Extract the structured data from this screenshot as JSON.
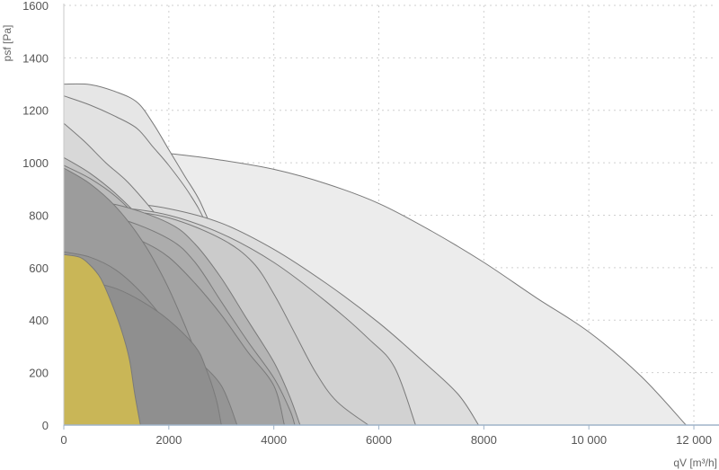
{
  "chart_data": {
    "type": "area",
    "xlabel": "qV [m³/h]",
    "ylabel": "psf [Pa]",
    "xlim": [
      0,
      12400
    ],
    "ylim": [
      0,
      1600
    ],
    "grid": true,
    "x_ticks": [
      {
        "value": 0,
        "label": "0"
      },
      {
        "value": 2000,
        "label": "2000"
      },
      {
        "value": 4000,
        "label": "4000"
      },
      {
        "value": 6000,
        "label": "6000"
      },
      {
        "value": 8000,
        "label": "8000"
      },
      {
        "value": 10000,
        "label": "10 000"
      },
      {
        "value": 12000,
        "label": "12 000"
      }
    ],
    "y_ticks": [
      {
        "value": 0,
        "label": "0"
      },
      {
        "value": 200,
        "label": "200"
      },
      {
        "value": 400,
        "label": "400"
      },
      {
        "value": 600,
        "label": "600"
      },
      {
        "value": 800,
        "label": "800"
      },
      {
        "value": 1000,
        "label": "1000"
      },
      {
        "value": 1200,
        "label": "1200"
      },
      {
        "value": 1400,
        "label": "1400"
      },
      {
        "value": 1600,
        "label": "1600"
      }
    ],
    "series": [
      {
        "fill": "#ececec",
        "points": [
          [
            0,
            1050
          ],
          [
            1000,
            1045
          ],
          [
            2000,
            1035
          ],
          [
            3000,
            1010
          ],
          [
            4000,
            975
          ],
          [
            5000,
            920
          ],
          [
            6000,
            845
          ],
          [
            7000,
            740
          ],
          [
            8000,
            620
          ],
          [
            9000,
            485
          ],
          [
            10000,
            355
          ],
          [
            11000,
            185
          ],
          [
            11850,
            0
          ]
        ]
      },
      {
        "fill": "#e6e6e6",
        "points": [
          [
            0,
            1300
          ],
          [
            500,
            1298
          ],
          [
            1000,
            1270
          ],
          [
            1400,
            1230
          ],
          [
            1700,
            1150
          ],
          [
            2000,
            1050
          ],
          [
            2300,
            950
          ],
          [
            2600,
            850
          ],
          [
            2900,
            700
          ],
          [
            3200,
            480
          ],
          [
            3400,
            260
          ],
          [
            3600,
            0
          ]
        ]
      },
      {
        "fill": "#e2e2e2",
        "points": [
          [
            0,
            1255
          ],
          [
            500,
            1220
          ],
          [
            1000,
            1175
          ],
          [
            1400,
            1130
          ],
          [
            1700,
            1060
          ],
          [
            2000,
            990
          ],
          [
            2400,
            880
          ],
          [
            2700,
            770
          ],
          [
            3000,
            590
          ],
          [
            3200,
            420
          ],
          [
            3400,
            200
          ],
          [
            3500,
            0
          ]
        ]
      },
      {
        "fill": "#dddddd",
        "points": [
          [
            0,
            855
          ],
          [
            1000,
            850
          ],
          [
            2000,
            825
          ],
          [
            3000,
            770
          ],
          [
            4000,
            670
          ],
          [
            5000,
            540
          ],
          [
            6000,
            390
          ],
          [
            6800,
            250
          ],
          [
            7500,
            120
          ],
          [
            7900,
            0
          ]
        ]
      },
      {
        "fill": "#d8d8d8",
        "points": [
          [
            0,
            1150
          ],
          [
            400,
            1080
          ],
          [
            800,
            1000
          ],
          [
            1200,
            930
          ],
          [
            1600,
            840
          ],
          [
            2000,
            740
          ],
          [
            2400,
            620
          ],
          [
            2700,
            500
          ],
          [
            3000,
            360
          ],
          [
            3300,
            180
          ],
          [
            3500,
            0
          ]
        ]
      },
      {
        "fill": "#d2d2d2",
        "points": [
          [
            0,
            840
          ],
          [
            1000,
            830
          ],
          [
            2000,
            800
          ],
          [
            3000,
            730
          ],
          [
            4000,
            620
          ],
          [
            5000,
            470
          ],
          [
            5800,
            330
          ],
          [
            6300,
            220
          ],
          [
            6700,
            0
          ]
        ]
      },
      {
        "fill": "#cbcbcb",
        "points": [
          [
            0,
            830
          ],
          [
            1000,
            820
          ],
          [
            2000,
            790
          ],
          [
            3000,
            710
          ],
          [
            3600,
            620
          ],
          [
            4000,
            500
          ],
          [
            4400,
            350
          ],
          [
            4800,
            200
          ],
          [
            5200,
            90
          ],
          [
            5800,
            0
          ]
        ]
      },
      {
        "fill": "#c3c3c3",
        "points": [
          [
            0,
            1020
          ],
          [
            500,
            960
          ],
          [
            1000,
            880
          ],
          [
            1500,
            780
          ],
          [
            2000,
            660
          ],
          [
            2400,
            540
          ],
          [
            2800,
            400
          ],
          [
            3200,
            230
          ],
          [
            3400,
            0
          ]
        ]
      },
      {
        "fill": "#bcbcbc",
        "points": [
          [
            0,
            990
          ],
          [
            500,
            940
          ],
          [
            1000,
            870
          ],
          [
            1500,
            770
          ],
          [
            2000,
            650
          ],
          [
            2500,
            500
          ],
          [
            2900,
            330
          ],
          [
            3200,
            180
          ],
          [
            3300,
            0
          ]
        ]
      },
      {
        "fill": "#b4b4b4",
        "points": [
          [
            0,
            860
          ],
          [
            1000,
            840
          ],
          [
            2000,
            770
          ],
          [
            2500,
            690
          ],
          [
            3000,
            560
          ],
          [
            3500,
            400
          ],
          [
            4000,
            240
          ],
          [
            4300,
            110
          ],
          [
            4500,
            0
          ]
        ]
      },
      {
        "fill": "#acacac",
        "points": [
          [
            0,
            810
          ],
          [
            1000,
            790
          ],
          [
            2000,
            710
          ],
          [
            2500,
            620
          ],
          [
            3000,
            470
          ],
          [
            3500,
            320
          ],
          [
            4000,
            180
          ],
          [
            4300,
            60
          ],
          [
            4400,
            0
          ]
        ]
      },
      {
        "fill": "#a3a3a3",
        "points": [
          [
            0,
            780
          ],
          [
            800,
            760
          ],
          [
            1500,
            700
          ],
          [
            2000,
            640
          ],
          [
            2500,
            540
          ],
          [
            3000,
            420
          ],
          [
            3500,
            280
          ],
          [
            4000,
            150
          ],
          [
            4200,
            0
          ]
        ]
      },
      {
        "fill": "#9c9c9c",
        "points": [
          [
            0,
            980
          ],
          [
            500,
            920
          ],
          [
            1000,
            830
          ],
          [
            1500,
            700
          ],
          [
            1900,
            560
          ],
          [
            2200,
            430
          ],
          [
            2500,
            280
          ],
          [
            2700,
            140
          ],
          [
            2850,
            0
          ]
        ]
      },
      {
        "fill": "#959595",
        "points": [
          [
            0,
            660
          ],
          [
            500,
            640
          ],
          [
            1000,
            590
          ],
          [
            1500,
            500
          ],
          [
            2000,
            380
          ],
          [
            2500,
            260
          ],
          [
            3000,
            150
          ],
          [
            3300,
            0
          ]
        ]
      },
      {
        "fill": "#8f8f8f",
        "points": [
          [
            0,
            560
          ],
          [
            500,
            545
          ],
          [
            1000,
            520
          ],
          [
            1500,
            470
          ],
          [
            2000,
            400
          ],
          [
            2500,
            300
          ],
          [
            2700,
            220
          ],
          [
            2900,
            100
          ],
          [
            3000,
            0
          ]
        ]
      },
      {
        "fill": "#c9b657",
        "points": [
          [
            0,
            650
          ],
          [
            300,
            640
          ],
          [
            500,
            610
          ],
          [
            700,
            560
          ],
          [
            900,
            470
          ],
          [
            1100,
            360
          ],
          [
            1250,
            250
          ],
          [
            1350,
            120
          ],
          [
            1460,
            0
          ]
        ]
      }
    ]
  }
}
